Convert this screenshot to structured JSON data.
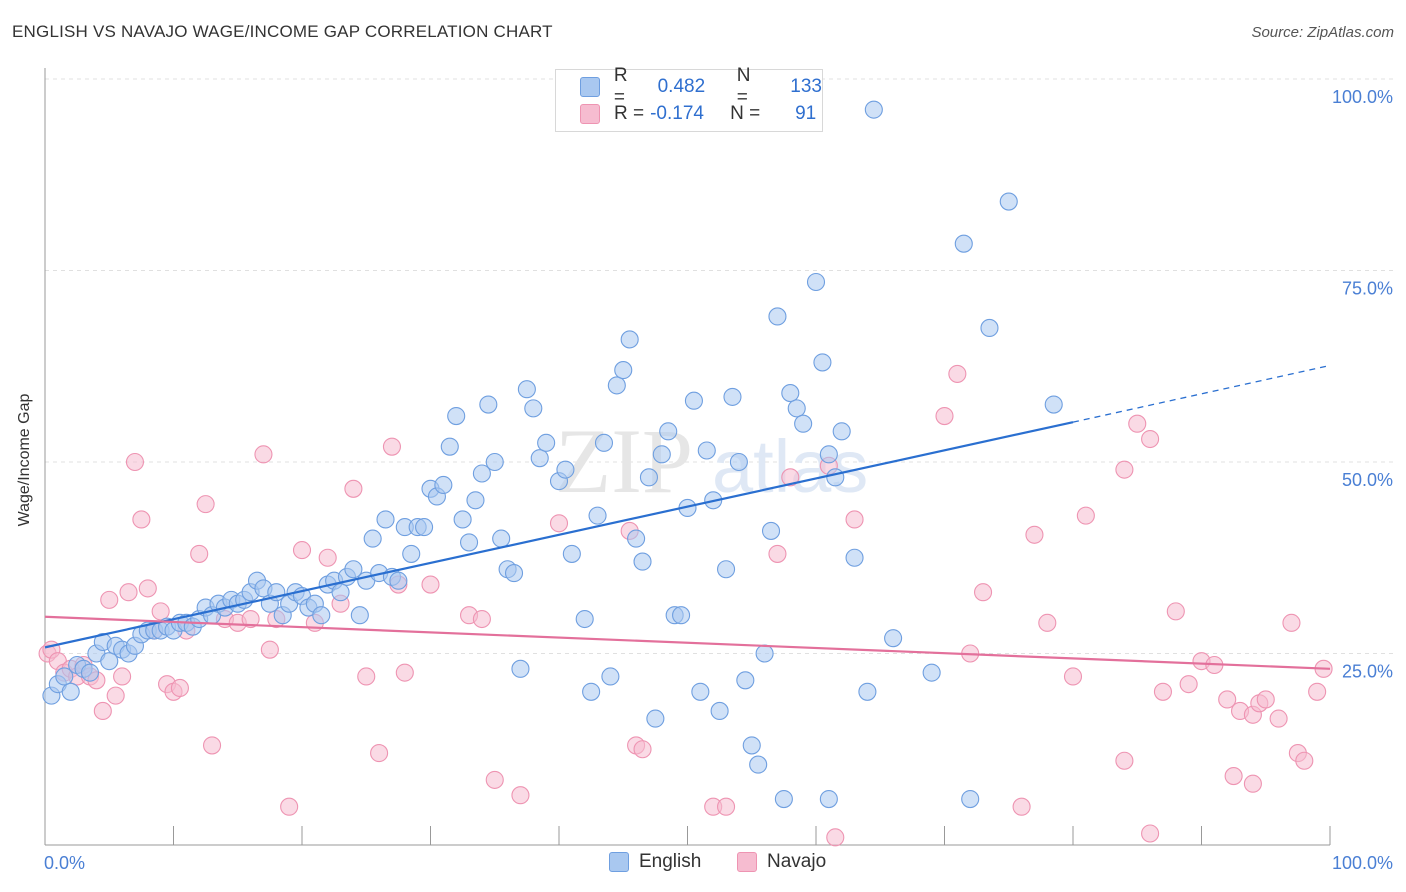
{
  "header": {
    "title": "ENGLISH VS NAVAJO WAGE/INCOME GAP CORRELATION CHART",
    "source": "Source: ZipAtlas.com"
  },
  "legend": {
    "english": {
      "r_label": "R =",
      "r_value": "0.482",
      "n_label": "N =",
      "n_value": "133"
    },
    "navajo": {
      "r_label": "R =",
      "r_value": "-0.174",
      "n_label": "N =",
      "n_value": "91"
    }
  },
  "bottom_legend": {
    "english": "English",
    "navajo": "Navajo"
  },
  "watermark": "ZIPatlas",
  "colors": {
    "english_fill": "#a9c8f0",
    "english_stroke": "#6f9fe0",
    "english_line": "#2a6fd0",
    "navajo_fill": "#f6bcd0",
    "navajo_stroke": "#ee94b2",
    "navajo_line": "#e3709b",
    "tick_text": "#4a7fd4",
    "grid": "#e0e0e0"
  },
  "chart_data": {
    "type": "scatter",
    "title": "ENGLISH VS NAVAJO WAGE/INCOME GAP CORRELATION CHART",
    "xlabel": "",
    "ylabel": "Wage/Income Gap",
    "xlim": [
      0,
      100
    ],
    "ylim": [
      0,
      100
    ],
    "x_tick_labels": [
      "0.0%",
      "100.0%"
    ],
    "y_tick_labels": [
      "100.0%",
      "75.0%",
      "50.0%",
      "25.0%"
    ],
    "y_ticks": [
      100,
      75,
      50,
      25
    ],
    "grid": true,
    "legend_position": "top-center",
    "series": [
      {
        "name": "English",
        "trend": {
          "x0": 0,
          "y0": 25.8,
          "x1": 80,
          "y1": 55.2,
          "dashed_to_x": 100,
          "dashed_to_y": 62.6
        },
        "points": [
          [
            0.5,
            19.5
          ],
          [
            1,
            21
          ],
          [
            1.5,
            22
          ],
          [
            2,
            20
          ],
          [
            2.5,
            23.5
          ],
          [
            3,
            23
          ],
          [
            3.5,
            22.5
          ],
          [
            4,
            25
          ],
          [
            4.5,
            26.5
          ],
          [
            5,
            24
          ],
          [
            5.5,
            26
          ],
          [
            6,
            25.5
          ],
          [
            6.5,
            25
          ],
          [
            7,
            26
          ],
          [
            7.5,
            27.5
          ],
          [
            8,
            28
          ],
          [
            8.5,
            28
          ],
          [
            9,
            28
          ],
          [
            9.5,
            28.5
          ],
          [
            10,
            28
          ],
          [
            10.5,
            29
          ],
          [
            11,
            29
          ],
          [
            11.5,
            28.5
          ],
          [
            12,
            29.5
          ],
          [
            12.5,
            31
          ],
          [
            13,
            30
          ],
          [
            13.5,
            31.5
          ],
          [
            14,
            31
          ],
          [
            14.5,
            32
          ],
          [
            15,
            31.5
          ],
          [
            15.5,
            32
          ],
          [
            16,
            33
          ],
          [
            16.5,
            34.5
          ],
          [
            17,
            33.5
          ],
          [
            17.5,
            31.5
          ],
          [
            18,
            33
          ],
          [
            18.5,
            30
          ],
          [
            19,
            31.5
          ],
          [
            19.5,
            33
          ],
          [
            20,
            32.5
          ],
          [
            20.5,
            31
          ],
          [
            21,
            31.5
          ],
          [
            21.5,
            30
          ],
          [
            22,
            34
          ],
          [
            22.5,
            34.5
          ],
          [
            23,
            33
          ],
          [
            23.5,
            35
          ],
          [
            24,
            36
          ],
          [
            24.5,
            30
          ],
          [
            25,
            34.5
          ],
          [
            25.5,
            40
          ],
          [
            26,
            35.5
          ],
          [
            26.5,
            42.5
          ],
          [
            27,
            35
          ],
          [
            27.5,
            34.5
          ],
          [
            28,
            41.5
          ],
          [
            28.5,
            38
          ],
          [
            29,
            41.5
          ],
          [
            29.5,
            41.5
          ],
          [
            30,
            46.5
          ],
          [
            30.5,
            45.5
          ],
          [
            31,
            47
          ],
          [
            31.5,
            52
          ],
          [
            32,
            56
          ],
          [
            32.5,
            42.5
          ],
          [
            33,
            39.5
          ],
          [
            33.5,
            45
          ],
          [
            34,
            48.5
          ],
          [
            34.5,
            57.5
          ],
          [
            35,
            50
          ],
          [
            35.5,
            40
          ],
          [
            36,
            36
          ],
          [
            36.5,
            35.5
          ],
          [
            37,
            23
          ],
          [
            37.5,
            59.5
          ],
          [
            38,
            57
          ],
          [
            38.5,
            50.5
          ],
          [
            39,
            52.5
          ],
          [
            40,
            47.5
          ],
          [
            40.5,
            49
          ],
          [
            41,
            38
          ],
          [
            42,
            29.5
          ],
          [
            42.5,
            20
          ],
          [
            43,
            43
          ],
          [
            43.5,
            52.5
          ],
          [
            44,
            22
          ],
          [
            44.5,
            60
          ],
          [
            45,
            62
          ],
          [
            45.5,
            66
          ],
          [
            46,
            40
          ],
          [
            46.5,
            37
          ],
          [
            47,
            48
          ],
          [
            47.5,
            16.5
          ],
          [
            48,
            51
          ],
          [
            48.5,
            54
          ],
          [
            49,
            30
          ],
          [
            49.5,
            30
          ],
          [
            50,
            44
          ],
          [
            50.5,
            58
          ],
          [
            51,
            20
          ],
          [
            51.5,
            51.5
          ],
          [
            52,
            45
          ],
          [
            52.5,
            17.5
          ],
          [
            53,
            36
          ],
          [
            53.5,
            58.5
          ],
          [
            54,
            50
          ],
          [
            54.5,
            21.5
          ],
          [
            55,
            13
          ],
          [
            55.5,
            10.5
          ],
          [
            56,
            25
          ],
          [
            56.5,
            41
          ],
          [
            57,
            69
          ],
          [
            58,
            59
          ],
          [
            58.5,
            57
          ],
          [
            59,
            55
          ],
          [
            60,
            73.5
          ],
          [
            60.5,
            63
          ],
          [
            61,
            51
          ],
          [
            61.5,
            48
          ],
          [
            62,
            54
          ],
          [
            63,
            37.5
          ],
          [
            64,
            20
          ],
          [
            64.5,
            96
          ],
          [
            66,
            27
          ],
          [
            69,
            22.5
          ],
          [
            71.5,
            78.5
          ],
          [
            72,
            6
          ],
          [
            73.5,
            67.5
          ],
          [
            75,
            84
          ],
          [
            78.5,
            57.5
          ],
          [
            57.5,
            6
          ],
          [
            61,
            6
          ]
        ]
      },
      {
        "name": "Navajo",
        "trend": {
          "x0": 0,
          "y0": 29.8,
          "x1": 100,
          "y1": 23.0
        },
        "points": [
          [
            0.2,
            25
          ],
          [
            0.5,
            25.5
          ],
          [
            1,
            24
          ],
          [
            1.5,
            22.5
          ],
          [
            2,
            23
          ],
          [
            2.5,
            22
          ],
          [
            3,
            23.5
          ],
          [
            3.5,
            22
          ],
          [
            4,
            21.5
          ],
          [
            4.5,
            17.5
          ],
          [
            5,
            32
          ],
          [
            5.5,
            19.5
          ],
          [
            6,
            22
          ],
          [
            6.5,
            33
          ],
          [
            7,
            50
          ],
          [
            7.5,
            42.5
          ],
          [
            8,
            33.5
          ],
          [
            8.5,
            28
          ],
          [
            9,
            30.5
          ],
          [
            9.5,
            21
          ],
          [
            10,
            20
          ],
          [
            10.5,
            20.5
          ],
          [
            11,
            28
          ],
          [
            12,
            38
          ],
          [
            12.5,
            44.5
          ],
          [
            13,
            13
          ],
          [
            14,
            29.5
          ],
          [
            15,
            29
          ],
          [
            16,
            29.5
          ],
          [
            17,
            51
          ],
          [
            17.5,
            25.5
          ],
          [
            18,
            29.5
          ],
          [
            19,
            5
          ],
          [
            20,
            38.5
          ],
          [
            21,
            29
          ],
          [
            22,
            37.5
          ],
          [
            23,
            31.5
          ],
          [
            24,
            46.5
          ],
          [
            25,
            22
          ],
          [
            26,
            12
          ],
          [
            27,
            52
          ],
          [
            27.5,
            34
          ],
          [
            28,
            22.5
          ],
          [
            30,
            34
          ],
          [
            33,
            30
          ],
          [
            34,
            29.5
          ],
          [
            35,
            8.5
          ],
          [
            37,
            6.5
          ],
          [
            40,
            42
          ],
          [
            45.5,
            41
          ],
          [
            46,
            13
          ],
          [
            46.5,
            12.5
          ],
          [
            52,
            5
          ],
          [
            53,
            5
          ],
          [
            57,
            38
          ],
          [
            58,
            48
          ],
          [
            61,
            49.5
          ],
          [
            61.5,
            1
          ],
          [
            63,
            42.5
          ],
          [
            70,
            56
          ],
          [
            71,
            61.5
          ],
          [
            72,
            25
          ],
          [
            73,
            33
          ],
          [
            76,
            5
          ],
          [
            77,
            40.5
          ],
          [
            78,
            29
          ],
          [
            80,
            22
          ],
          [
            81,
            43
          ],
          [
            84,
            49
          ],
          [
            85,
            55
          ],
          [
            86,
            53
          ],
          [
            84,
            11
          ],
          [
            86,
            1.5
          ],
          [
            87,
            20
          ],
          [
            88,
            30.5
          ],
          [
            89,
            21
          ],
          [
            90,
            24
          ],
          [
            91,
            23.5
          ],
          [
            92,
            19
          ],
          [
            93,
            17.5
          ],
          [
            94,
            17
          ],
          [
            94.5,
            18.5
          ],
          [
            95,
            19
          ],
          [
            96,
            16.5
          ],
          [
            97,
            29
          ],
          [
            97.5,
            12
          ],
          [
            98,
            11
          ],
          [
            99,
            20
          ],
          [
            99.5,
            23
          ],
          [
            92.5,
            9
          ],
          [
            94,
            8
          ]
        ]
      }
    ]
  }
}
